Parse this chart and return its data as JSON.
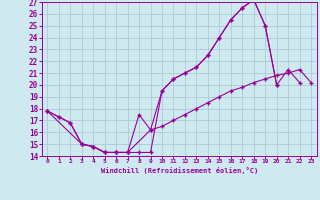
{
  "xlabel": "Windchill (Refroidissement éolien,°C)",
  "xlim": [
    -0.5,
    23.5
  ],
  "ylim": [
    14,
    27
  ],
  "xticks": [
    0,
    1,
    2,
    3,
    4,
    5,
    6,
    7,
    8,
    9,
    10,
    11,
    12,
    13,
    14,
    15,
    16,
    17,
    18,
    19,
    20,
    21,
    22,
    23
  ],
  "yticks": [
    14,
    15,
    16,
    17,
    18,
    19,
    20,
    21,
    22,
    23,
    24,
    25,
    26,
    27
  ],
  "bg_color": "#cee9f0",
  "grid_color": "#aaccd8",
  "line_color": "#990099",
  "curves": [
    {
      "x": [
        0,
        1,
        2,
        3,
        4,
        5,
        6,
        7,
        8,
        9,
        10,
        11,
        12,
        13,
        14,
        15,
        16,
        17,
        18,
        19,
        20,
        21,
        22
      ],
      "y": [
        17.8,
        17.3,
        16.8,
        15.0,
        14.8,
        14.3,
        14.3,
        14.3,
        14.3,
        14.3,
        19.5,
        20.5,
        21.0,
        21.5,
        22.5,
        24.0,
        25.5,
        26.5,
        27.2,
        25.0,
        20.0,
        21.3,
        20.2
      ]
    },
    {
      "x": [
        0,
        1,
        2,
        3,
        4,
        5,
        6,
        7,
        9,
        10,
        11,
        12,
        13,
        14,
        15,
        16,
        17,
        18,
        19,
        20
      ],
      "y": [
        17.8,
        17.3,
        16.8,
        15.0,
        14.8,
        14.3,
        14.3,
        14.3,
        16.2,
        19.5,
        20.5,
        21.0,
        21.5,
        22.5,
        24.0,
        25.5,
        26.5,
        27.2,
        25.0,
        20.0
      ]
    },
    {
      "x": [
        0,
        3,
        4,
        5,
        6,
        7,
        8,
        9,
        10,
        11,
        12,
        13,
        14,
        15,
        16,
        17,
        18,
        19,
        20,
        21,
        22,
        23
      ],
      "y": [
        17.8,
        15.0,
        14.8,
        14.3,
        14.3,
        14.3,
        17.5,
        16.2,
        16.5,
        17.0,
        17.5,
        18.0,
        18.5,
        19.0,
        19.5,
        19.8,
        20.2,
        20.5,
        20.8,
        21.0,
        21.3,
        20.2
      ]
    }
  ]
}
